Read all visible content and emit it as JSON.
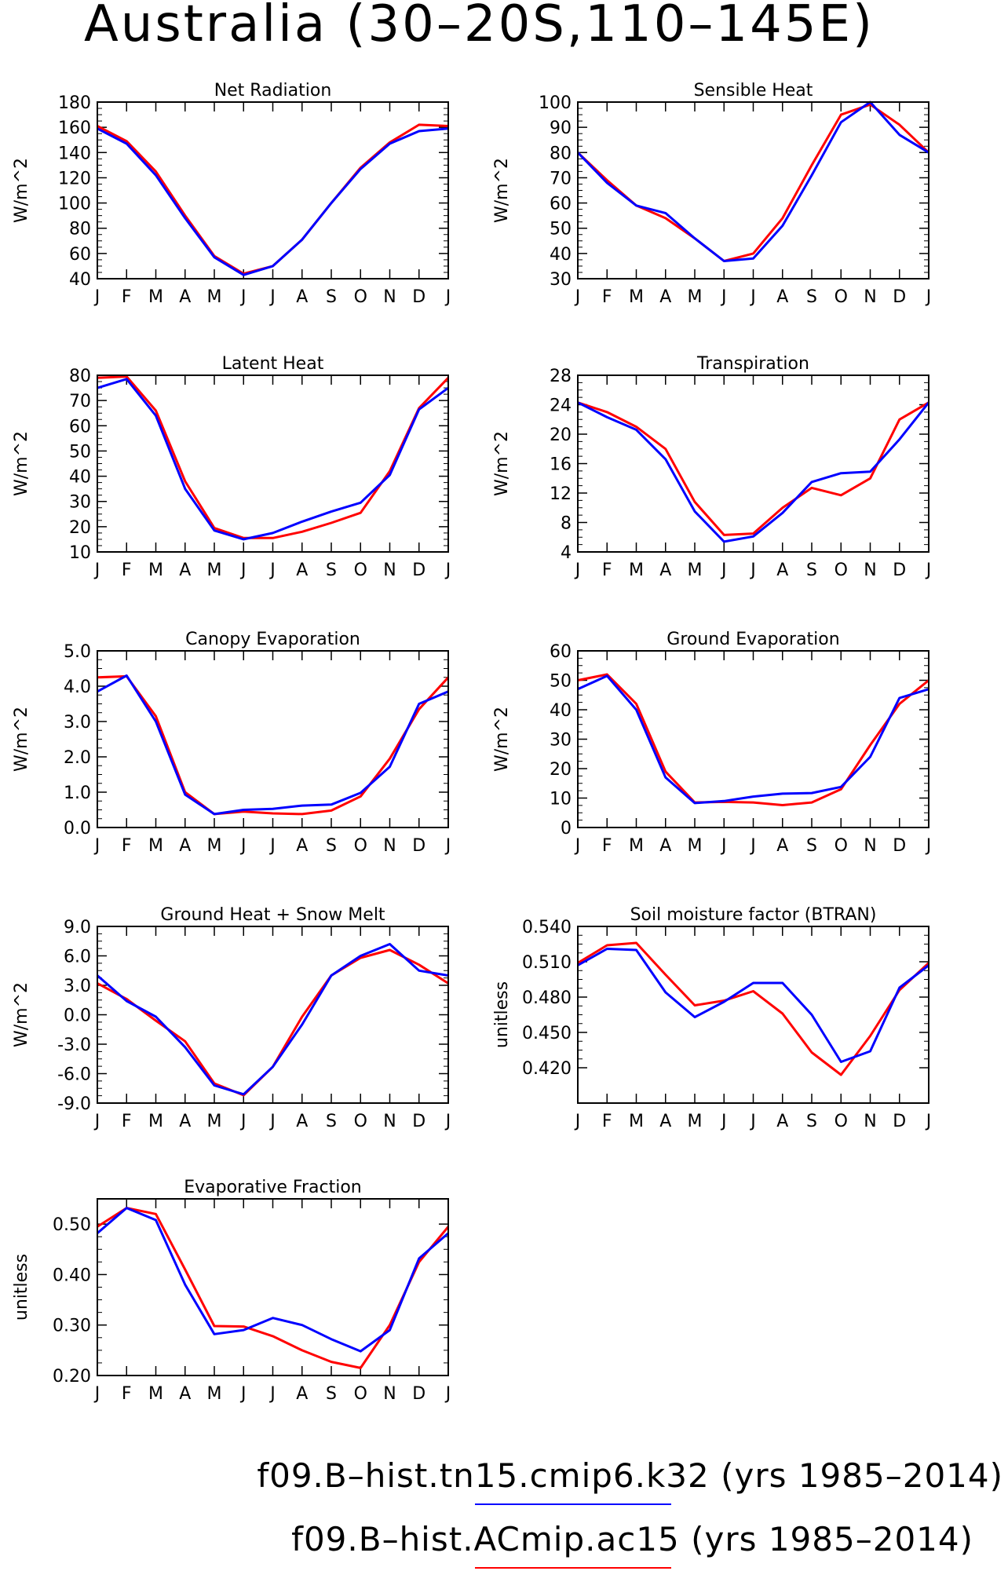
{
  "title": "Australia (30–20S,110–145E)",
  "colors": {
    "series_1": "#0000ff",
    "series_2": "#ff0000",
    "axes": "#000000"
  },
  "legend": {
    "entries": [
      {
        "label": "f09.B–hist.tn15.cmip6.k32 (yrs 1985–2014)",
        "color": "#0000ff"
      },
      {
        "label": "f09.B–hist.ACmip.ac15 (yrs 1985–2014)",
        "color": "#ff0000"
      }
    ]
  },
  "chart_data": [
    {
      "type": "line",
      "title": "Net Radiation",
      "ylabel": "W/m^2",
      "categories": [
        "J",
        "F",
        "M",
        "A",
        "M",
        "J",
        "J",
        "A",
        "S",
        "O",
        "N",
        "D",
        "J"
      ],
      "ylim": [
        40,
        180
      ],
      "yticks": [
        40,
        60,
        80,
        100,
        120,
        140,
        160,
        180
      ],
      "ytick_labels": [
        "40",
        "60",
        "80",
        "100",
        "120",
        "140",
        "160",
        "180"
      ],
      "series": [
        {
          "color": "#ff0000",
          "values": [
            161,
            149,
            125,
            90,
            58,
            44,
            50,
            71,
            100,
            128,
            148,
            162,
            161
          ]
        },
        {
          "color": "#0000ff",
          "values": [
            159,
            147,
            122,
            88,
            57,
            43,
            50,
            71,
            100,
            127,
            147,
            157,
            159
          ]
        }
      ]
    },
    {
      "type": "line",
      "title": "Sensible Heat",
      "ylabel": "W/m^2",
      "categories": [
        "J",
        "F",
        "M",
        "A",
        "M",
        "J",
        "J",
        "A",
        "S",
        "O",
        "N",
        "D",
        "J"
      ],
      "ylim": [
        30,
        100
      ],
      "yticks": [
        30,
        40,
        50,
        60,
        70,
        80,
        90,
        100
      ],
      "ytick_labels": [
        "30",
        "40",
        "50",
        "60",
        "70",
        "80",
        "90",
        "100"
      ],
      "series": [
        {
          "color": "#ff0000",
          "values": [
            80,
            69,
            59,
            54,
            46,
            37,
            40,
            54,
            75,
            95,
            99,
            91,
            80
          ]
        },
        {
          "color": "#0000ff",
          "values": [
            80,
            68,
            59,
            56,
            46,
            37,
            38,
            51,
            71,
            92,
            100,
            87,
            80
          ]
        }
      ]
    },
    {
      "type": "line",
      "title": "Latent Heat",
      "ylabel": "W/m^2",
      "categories": [
        "J",
        "F",
        "M",
        "A",
        "M",
        "J",
        "J",
        "A",
        "S",
        "O",
        "N",
        "D",
        "J"
      ],
      "ylim": [
        10,
        80
      ],
      "yticks": [
        10,
        20,
        30,
        40,
        50,
        60,
        70,
        80
      ],
      "ytick_labels": [
        "10",
        "20",
        "30",
        "40",
        "50",
        "60",
        "70",
        "80"
      ],
      "series": [
        {
          "color": "#ff0000",
          "values": [
            79,
            79.5,
            66,
            38,
            19.5,
            15.5,
            15.5,
            18,
            21.5,
            25.5,
            42,
            67,
            79
          ]
        },
        {
          "color": "#0000ff",
          "values": [
            75,
            78.5,
            64,
            35,
            18.5,
            15,
            17.5,
            22,
            26,
            29.5,
            40.5,
            66.5,
            75
          ]
        }
      ]
    },
    {
      "type": "line",
      "title": "Transpiration",
      "ylabel": "W/m^2",
      "categories": [
        "J",
        "F",
        "M",
        "A",
        "M",
        "J",
        "J",
        "A",
        "S",
        "O",
        "N",
        "D",
        "J"
      ],
      "ylim": [
        4,
        28
      ],
      "yticks": [
        4,
        8,
        12,
        16,
        20,
        24,
        28
      ],
      "ytick_labels": [
        "4",
        "8",
        "12",
        "16",
        "20",
        "24",
        "28"
      ],
      "series": [
        {
          "color": "#ff0000",
          "values": [
            24.3,
            23,
            21,
            18,
            10.8,
            6.3,
            6.5,
            10,
            12.7,
            11.7,
            14,
            22,
            24.3
          ]
        },
        {
          "color": "#0000ff",
          "values": [
            24.3,
            22.3,
            20.6,
            16.6,
            9.5,
            5.4,
            6.1,
            9.3,
            13.5,
            14.7,
            14.9,
            19.3,
            24.3
          ]
        }
      ]
    },
    {
      "type": "line",
      "title": "Canopy Evaporation",
      "ylabel": "W/m^2",
      "categories": [
        "J",
        "F",
        "M",
        "A",
        "M",
        "J",
        "J",
        "A",
        "S",
        "O",
        "N",
        "D",
        "J"
      ],
      "ylim": [
        0,
        5
      ],
      "yticks": [
        0,
        1,
        2,
        3,
        4,
        5
      ],
      "ytick_labels": [
        "0.0",
        "1.0",
        "2.0",
        "3.0",
        "4.0",
        "5.0"
      ],
      "series": [
        {
          "color": "#ff0000",
          "values": [
            4.25,
            4.28,
            3.15,
            1.0,
            0.38,
            0.45,
            0.4,
            0.38,
            0.48,
            0.88,
            1.95,
            3.35,
            4.25
          ]
        },
        {
          "color": "#0000ff",
          "values": [
            3.85,
            4.3,
            3.0,
            0.93,
            0.38,
            0.5,
            0.53,
            0.62,
            0.65,
            0.98,
            1.72,
            3.5,
            3.85
          ]
        }
      ]
    },
    {
      "type": "line",
      "title": "Ground Evaporation",
      "ylabel": "W/m^2",
      "categories": [
        "J",
        "F",
        "M",
        "A",
        "M",
        "J",
        "J",
        "A",
        "S",
        "O",
        "N",
        "D",
        "J"
      ],
      "ylim": [
        0,
        60
      ],
      "yticks": [
        0,
        10,
        20,
        30,
        40,
        50,
        60
      ],
      "ytick_labels": [
        "0",
        "10",
        "20",
        "30",
        "40",
        "50",
        "60"
      ],
      "series": [
        {
          "color": "#ff0000",
          "values": [
            50,
            52,
            42,
            19,
            8.5,
            8.7,
            8.5,
            7.6,
            8.5,
            13,
            28,
            42,
            50
          ]
        },
        {
          "color": "#0000ff",
          "values": [
            47,
            51.5,
            40,
            17,
            8.3,
            9,
            10.5,
            11.5,
            11.7,
            13.8,
            24,
            44,
            47
          ]
        }
      ]
    },
    {
      "type": "line",
      "title": "Ground Heat + Snow Melt",
      "ylabel": "W/m^2",
      "categories": [
        "J",
        "F",
        "M",
        "A",
        "M",
        "J",
        "J",
        "A",
        "S",
        "O",
        "N",
        "D",
        "J"
      ],
      "ylim": [
        -9,
        9
      ],
      "yticks": [
        -9,
        -6,
        -3,
        0,
        3,
        6,
        9
      ],
      "ytick_labels": [
        "-9.0",
        "-6.0",
        "-3.0",
        "0.0",
        "3.0",
        "6.0",
        "9.0"
      ],
      "series": [
        {
          "color": "#ff0000",
          "values": [
            3.2,
            1.6,
            -0.6,
            -2.7,
            -7,
            -8.2,
            -5.3,
            -0.2,
            4,
            5.8,
            6.6,
            5.1,
            3.2
          ]
        },
        {
          "color": "#0000ff",
          "values": [
            4,
            1.4,
            -0.2,
            -3.3,
            -7.2,
            -8.1,
            -5.3,
            -1,
            4,
            6,
            7.2,
            4.5,
            4
          ]
        }
      ]
    },
    {
      "type": "line",
      "title": "Soil moisture factor (BTRAN)",
      "ylabel": "unitless",
      "categories": [
        "J",
        "F",
        "M",
        "A",
        "M",
        "J",
        "J",
        "A",
        "S",
        "O",
        "N",
        "D",
        "J"
      ],
      "ylim": [
        0.39,
        0.54
      ],
      "yticks": [
        0.42,
        0.45,
        0.48,
        0.51,
        0.54
      ],
      "ytick_labels": [
        "0.420",
        "0.450",
        "0.480",
        "0.510",
        "0.540"
      ],
      "series": [
        {
          "color": "#ff0000",
          "values": [
            0.509,
            0.524,
            0.526,
            0.499,
            0.473,
            0.477,
            0.485,
            0.466,
            0.433,
            0.414,
            0.447,
            0.486,
            0.509
          ]
        },
        {
          "color": "#0000ff",
          "values": [
            0.507,
            0.521,
            0.52,
            0.484,
            0.463,
            0.476,
            0.492,
            0.492,
            0.465,
            0.425,
            0.434,
            0.488,
            0.507
          ]
        }
      ]
    },
    {
      "type": "line",
      "title": "Evaporative Fraction",
      "ylabel": "unitless",
      "categories": [
        "J",
        "F",
        "M",
        "A",
        "M",
        "J",
        "J",
        "A",
        "S",
        "O",
        "N",
        "D",
        "J"
      ],
      "ylim": [
        0.2,
        0.55
      ],
      "yticks": [
        0.2,
        0.3,
        0.4,
        0.5
      ],
      "ytick_labels": [
        "0.20",
        "0.30",
        "0.40",
        "0.50"
      ],
      "series": [
        {
          "color": "#ff0000",
          "values": [
            0.495,
            0.532,
            0.52,
            0.41,
            0.298,
            0.297,
            0.278,
            0.25,
            0.227,
            0.215,
            0.3,
            0.425,
            0.495
          ]
        },
        {
          "color": "#0000ff",
          "values": [
            0.482,
            0.532,
            0.508,
            0.38,
            0.282,
            0.29,
            0.314,
            0.3,
            0.272,
            0.248,
            0.29,
            0.432,
            0.482
          ]
        }
      ]
    }
  ]
}
